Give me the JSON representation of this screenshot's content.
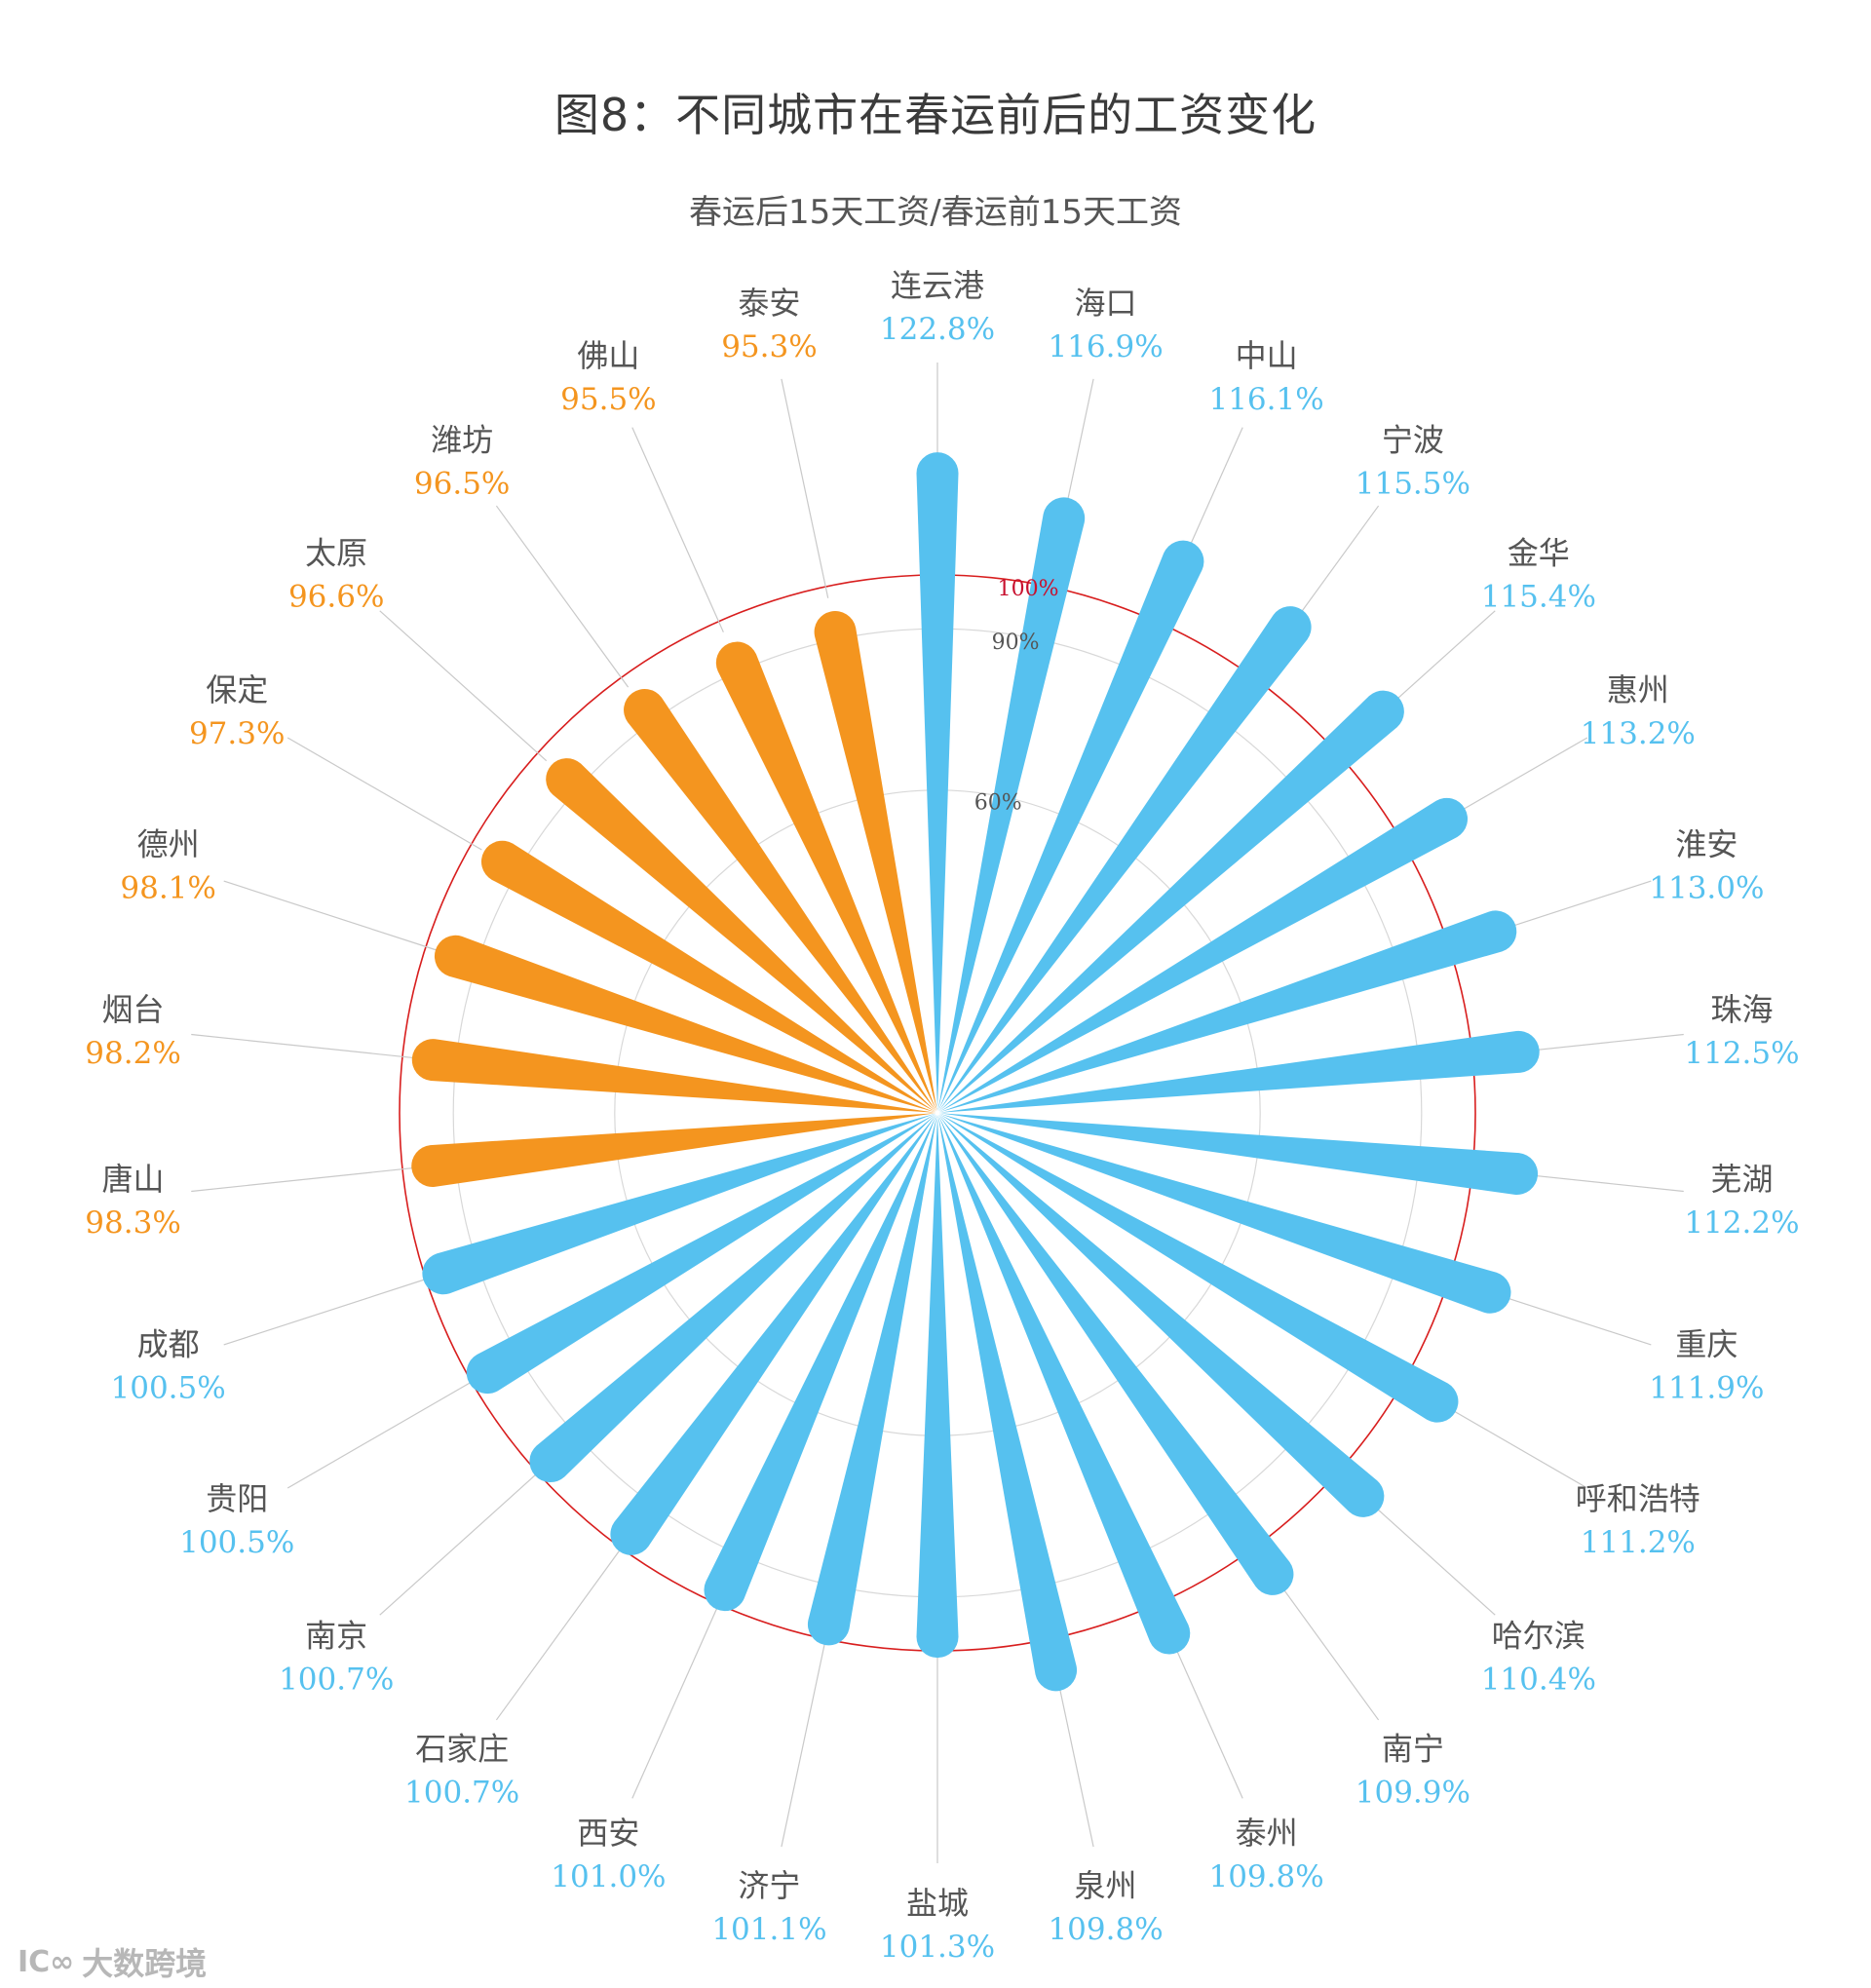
{
  "chart_data": {
    "type": "radial-bar",
    "title": "图8：不同城市在春运前后的工资变化",
    "subtitle": "春运后15天工资/春运前15天工资",
    "unit": "%",
    "reference_rings": [
      {
        "value": 100,
        "label": "100%",
        "color": "#d81e1e"
      },
      {
        "value": 90,
        "label": "90%",
        "color": "#d8d8d8"
      },
      {
        "value": 60,
        "label": "60%",
        "color": "#d8d8d8"
      }
    ],
    "colors": {
      "above_100": "#56c1ef",
      "below_100": "#f4951f",
      "name_text": "#555555"
    },
    "categories": [
      "连云港",
      "海口",
      "中山",
      "宁波",
      "金华",
      "惠州",
      "淮安",
      "珠海",
      "芜湖",
      "重庆",
      "呼和浩特",
      "哈尔滨",
      "南宁",
      "泰州",
      "泉州",
      "盐城",
      "济宁",
      "西安",
      "石家庄",
      "南京",
      "贵阳",
      "成都",
      "唐山",
      "烟台",
      "德州",
      "保定",
      "太原",
      "潍坊",
      "佛山",
      "泰安"
    ],
    "values": [
      122.8,
      116.9,
      116.1,
      115.5,
      115.4,
      113.2,
      113.0,
      112.5,
      112.2,
      111.9,
      111.2,
      110.4,
      109.9,
      109.8,
      109.8,
      101.3,
      101.1,
      101.0,
      100.7,
      100.7,
      100.5,
      100.5,
      98.3,
      98.2,
      98.1,
      97.3,
      96.6,
      96.5,
      95.5,
      95.3
    ],
    "value_labels": [
      "122.8%",
      "116.9%",
      "116.1%",
      "115.5%",
      "115.4%",
      "113.2%",
      "113.0%",
      "112.5%",
      "112.2%",
      "111.9%",
      "111.2%",
      "110.4%",
      "109.9%",
      "109.8%",
      "109.8%",
      "101.3%",
      "101.1%",
      "101.0%",
      "100.7%",
      "100.7%",
      "100.5%",
      "100.5%",
      "98.3%",
      "98.2%",
      "98.1%",
      "97.3%",
      "96.6%",
      "96.5%",
      "95.5%",
      "95.3%"
    ]
  },
  "watermark": {
    "logo": "IC∞",
    "text": "大数跨境"
  }
}
